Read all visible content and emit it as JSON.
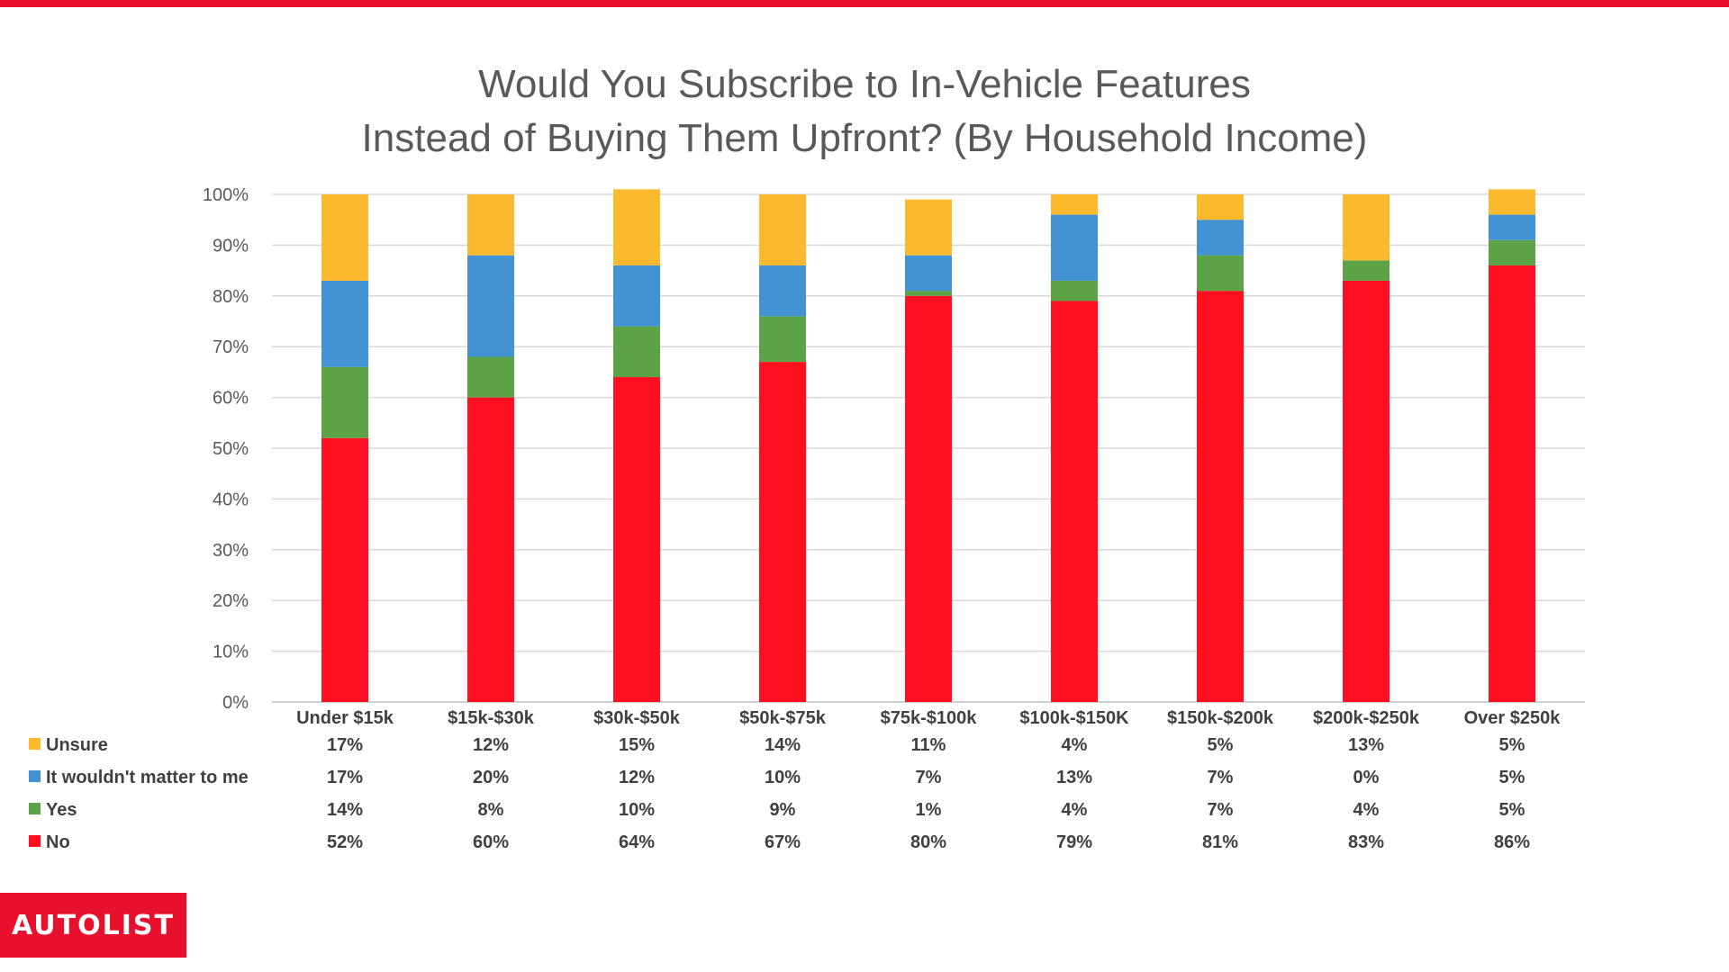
{
  "branding": {
    "logo_text": "AUTOLIST",
    "brand_color": "#e8112d"
  },
  "chart_data": {
    "type": "bar",
    "stacked": true,
    "title_lines": [
      "Would You Subscribe to In-Vehicle Features",
      "Instead of Buying Them Upfront? (By Household Income)"
    ],
    "categories": [
      "Under $15k",
      "$15k-$30k",
      "$30k-$50k",
      "$50k-$75k",
      "$75k-$100k",
      "$100k-$150K",
      "$150k-$200k",
      "$200k-$250k",
      "Over $250k"
    ],
    "series": [
      {
        "name": "No",
        "color": "#ff0f1f",
        "values": [
          52,
          60,
          64,
          67,
          80,
          79,
          81,
          83,
          86
        ]
      },
      {
        "name": "Yes",
        "color": "#5ba346",
        "values": [
          14,
          8,
          10,
          9,
          1,
          4,
          7,
          4,
          5
        ]
      },
      {
        "name": "It wouldn't matter to me",
        "color": "#4392d3",
        "values": [
          17,
          20,
          12,
          10,
          7,
          13,
          7,
          0,
          5
        ]
      },
      {
        "name": "Unsure",
        "color": "#fdb92e",
        "values": [
          17,
          12,
          15,
          14,
          11,
          4,
          5,
          13,
          5
        ]
      }
    ],
    "table_order": [
      "Unsure",
      "It wouldn't matter to me",
      "Yes",
      "No"
    ],
    "y_ticks": [
      "0%",
      "10%",
      "20%",
      "30%",
      "40%",
      "50%",
      "60%",
      "70%",
      "80%",
      "90%",
      "100%"
    ],
    "ylim": [
      0,
      100
    ],
    "grid": true,
    "legend": "data-table-below"
  }
}
